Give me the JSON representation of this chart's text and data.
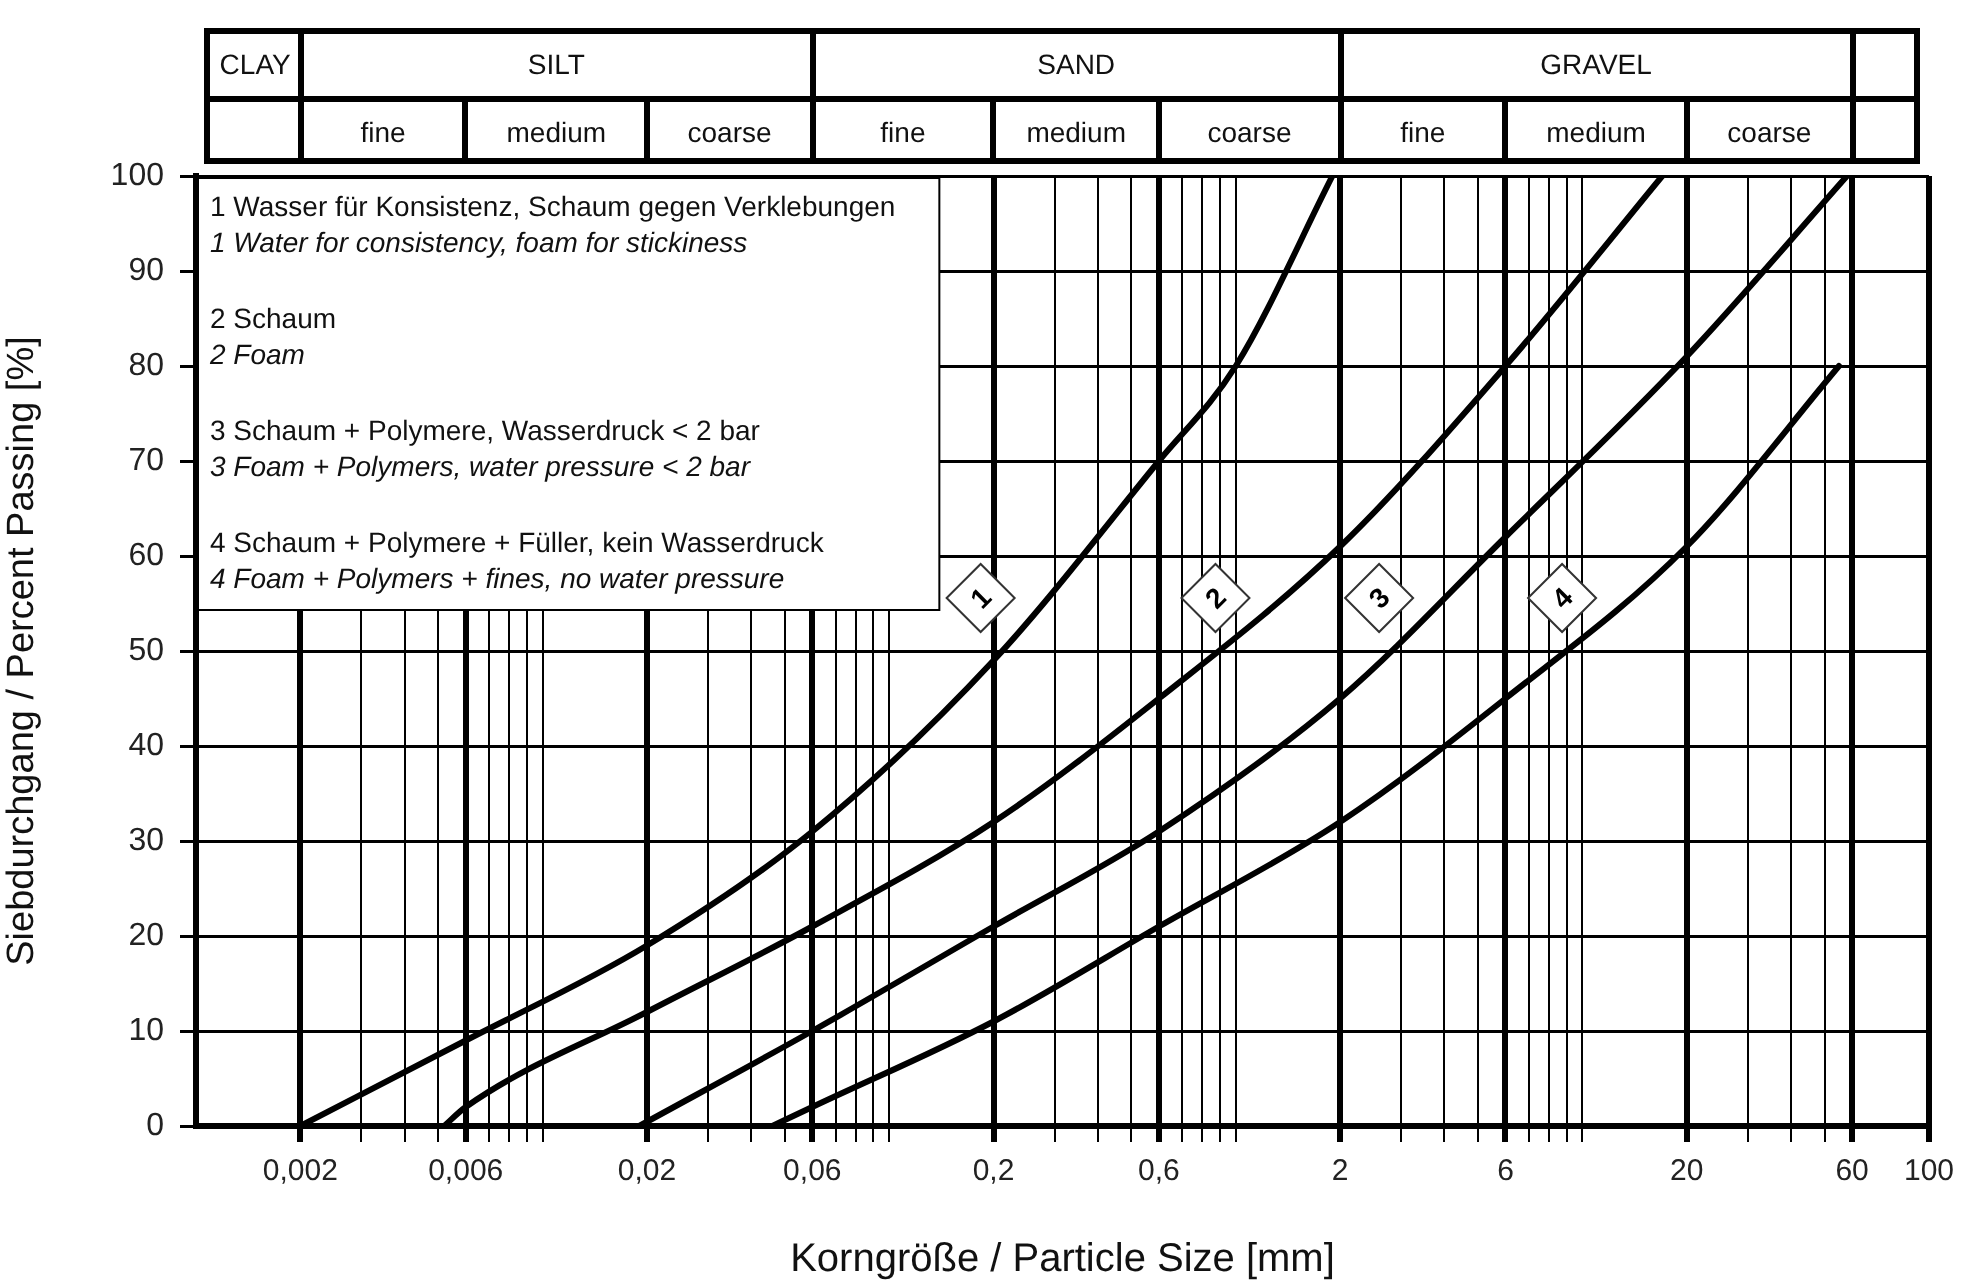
{
  "chart_data": {
    "type": "line",
    "xlabel": "Korngröße / Particle Size [mm]",
    "ylabel": "Siebdurchgang / Percent Passing [%]",
    "log": "x",
    "grid": true,
    "marker": "none",
    "line_style": "solid",
    "xlim": [
      0.001,
      100
    ],
    "ylim": [
      0,
      100
    ],
    "xticks": [
      {
        "value": 0.002,
        "label": "0,002"
      },
      {
        "value": 0.003,
        "label": null
      },
      {
        "value": 0.004,
        "label": null
      },
      {
        "value": 0.005,
        "label": null
      },
      {
        "value": 0.006,
        "label": "0,006"
      },
      {
        "value": 0.007,
        "label": null
      },
      {
        "value": 0.008,
        "label": null
      },
      {
        "value": 0.009,
        "label": null
      },
      {
        "value": 0.01,
        "label": null
      },
      {
        "value": 0.02,
        "label": "0,02"
      },
      {
        "value": 0.03,
        "label": null
      },
      {
        "value": 0.04,
        "label": null
      },
      {
        "value": 0.05,
        "label": null
      },
      {
        "value": 0.06,
        "label": "0,06"
      },
      {
        "value": 0.07,
        "label": null
      },
      {
        "value": 0.08,
        "label": null
      },
      {
        "value": 0.09,
        "label": null
      },
      {
        "value": 0.1,
        "label": null
      },
      {
        "value": 0.2,
        "label": "0,2"
      },
      {
        "value": 0.3,
        "label": null
      },
      {
        "value": 0.4,
        "label": null
      },
      {
        "value": 0.5,
        "label": null
      },
      {
        "value": 0.6,
        "label": "0,6"
      },
      {
        "value": 0.7,
        "label": null
      },
      {
        "value": 0.8,
        "label": null
      },
      {
        "value": 0.9,
        "label": null
      },
      {
        "value": 1,
        "label": null
      },
      2,
      {
        "value": 3,
        "label": null
      },
      {
        "value": 4,
        "label": null
      },
      {
        "value": 5,
        "label": null
      },
      6,
      {
        "value": 7,
        "label": null
      },
      {
        "value": 8,
        "label": null
      },
      {
        "value": 9,
        "label": null
      },
      {
        "value": 10,
        "label": null
      },
      20,
      {
        "value": 30,
        "label": null
      },
      {
        "value": 40,
        "label": null
      },
      {
        "value": 50,
        "label": null
      },
      60,
      100
    ],
    "yticks": [
      0,
      10,
      20,
      30,
      40,
      50,
      60,
      70,
      80,
      90,
      100
    ],
    "series": [
      {
        "name": "1",
        "color": "#000000",
        "x": [
          0.002,
          0.006,
          0.02,
          0.06,
          0.2,
          0.6,
          1,
          1.9
        ],
        "values": [
          0,
          9,
          19,
          31,
          49,
          70,
          80,
          100
        ]
      },
      {
        "name": "2",
        "color": "#000000",
        "x": [
          0.0052,
          0.006,
          0.02,
          0.06,
          0.2,
          0.6,
          2,
          6,
          17
        ],
        "values": [
          0,
          2,
          12,
          21,
          32,
          45,
          61,
          80,
          100
        ]
      },
      {
        "name": "3",
        "color": "#000000",
        "x": [
          0.019,
          0.06,
          0.2,
          0.6,
          2,
          6,
          20,
          58
        ],
        "values": [
          0,
          10,
          21,
          31,
          45,
          62,
          81,
          100
        ]
      },
      {
        "name": "4",
        "color": "#000000",
        "x": [
          0.046,
          0.06,
          0.2,
          0.6,
          2,
          6,
          20,
          55
        ],
        "values": [
          0,
          2,
          11,
          21,
          32,
          45,
          61,
          80
        ]
      }
    ],
    "annotations": [
      "CLAY",
      "SILT",
      "SAND",
      "GRAVEL",
      "fine",
      "medium",
      "coarse",
      "fine",
      "medium",
      "coarse",
      "fine",
      "medium",
      "coarse",
      "1 Wasser für Konsistenz, Schaum gegen Verklebungen",
      "1 Water for consistency, foam for stickiness",
      "2 Schaum",
      "2 Foam",
      "3 Schaum + Polymere, Wasserdruck < 2 bar",
      "3 Foam + Polymers, water pressure < 2 bar",
      "4 Schaum + Polymere + Füller, kein Wasserdruck",
      "4 Foam + Polymers + fines, no water pressure"
    ]
  }
}
